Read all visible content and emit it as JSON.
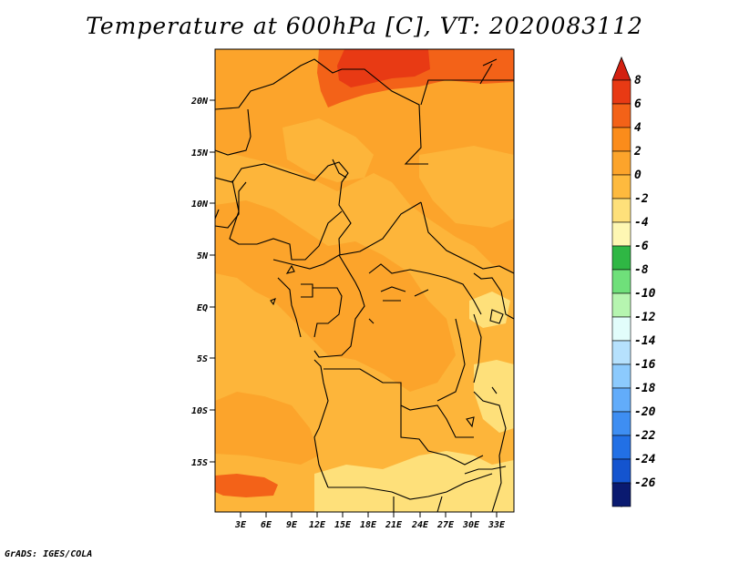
{
  "title": "Temperature at 600hPa [C], VT: 2020083112",
  "credit": "GrADS: IGES/COLA",
  "map": {
    "lat_ticks": [
      "20N",
      "15N",
      "10N",
      "5N",
      "EQ",
      "5S",
      "10S",
      "15S"
    ],
    "lon_ticks": [
      "3E",
      "6E",
      "9E",
      "12E",
      "15E",
      "18E",
      "21E",
      "24E",
      "27E",
      "30E",
      "33E"
    ],
    "background_color": "#fdb53a"
  },
  "colorbar": {
    "labels": [
      "8",
      "6",
      "4",
      "2",
      "0",
      "-2",
      "-4",
      "-6",
      "-8",
      "-10",
      "-12",
      "-14",
      "-16",
      "-18",
      "-20",
      "-22",
      "-24",
      "-26"
    ],
    "colors": [
      "#e83a14",
      "#f36218",
      "#fb8c1b",
      "#fca42b",
      "#feba3e",
      "#fee07a",
      "#fef7b3",
      "#2fb744",
      "#6fe07a",
      "#b6f5b0",
      "#e2fdfb",
      "#b6e1fd",
      "#8ccafd",
      "#62acfa",
      "#3e8ef2",
      "#2270e5",
      "#1454cf",
      "#0a38b0"
    ],
    "top_arrow_color": "#d32010",
    "bottom_arrow_color": "#e4e4fd",
    "bottom_cap_color": "#0a1a70"
  }
}
